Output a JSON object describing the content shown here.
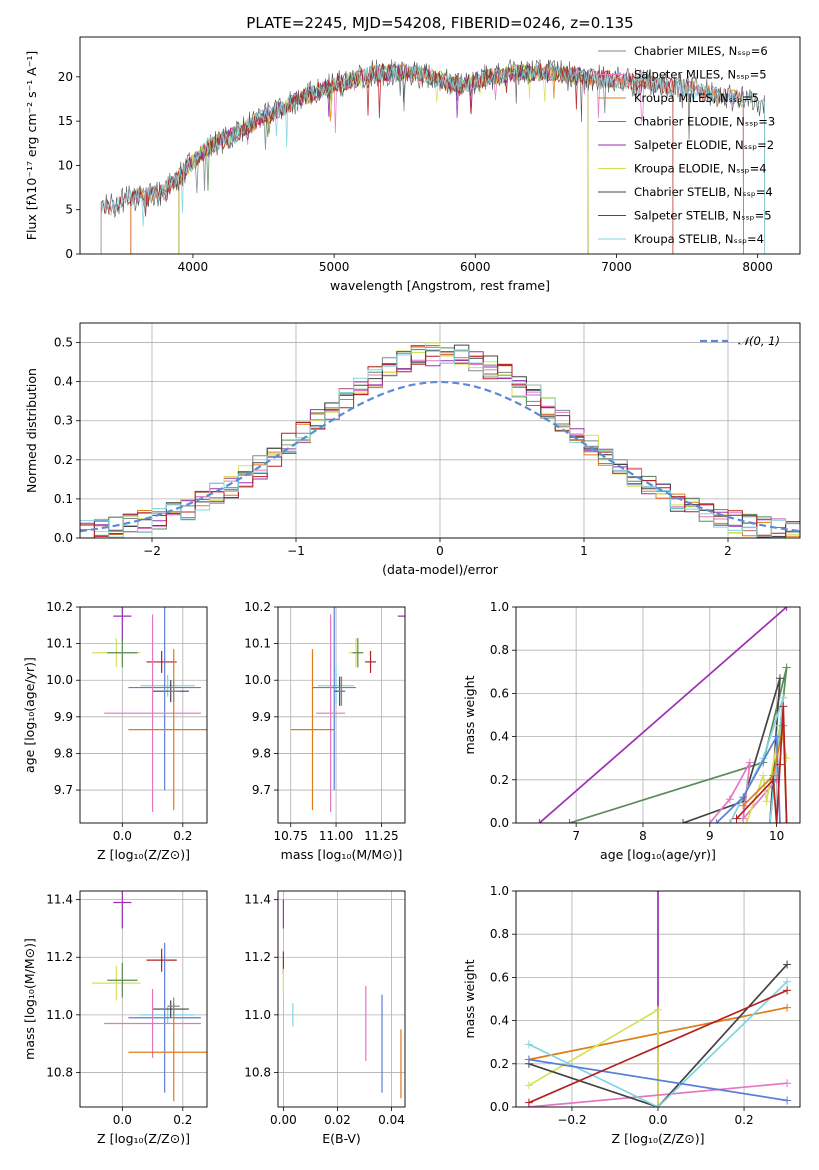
{
  "figure_title": "PLATE=2245, MJD=54208, FIBERID=0246, z=0.135",
  "model_colors": {
    "Chabrier MILES": "#7a8a8e",
    "Salpeter MILES": "#e377c2",
    "Kroupa MILES": "#e07b1a",
    "Chabrier ELODIE": "#5a8a5a",
    "Salpeter ELODIE": "#9b30b0",
    "Kroupa ELODIE": "#d4e157",
    "Chabrier STELIB": "#444444",
    "Salpeter STELIB": "#b22222",
    "Kroupa STELIB": "#80d4e0",
    "extra": "#5b7fd6"
  },
  "chart_data": [
    {
      "id": "spectrum",
      "type": "line",
      "xlabel": "wavelength [Angstrom, rest frame]",
      "ylabel": "Flux [fλ10⁻¹⁷ erg cm⁻² s⁻¹ A⁻¹]",
      "xlim": [
        3200,
        8300
      ],
      "ylim": [
        0,
        24.5
      ],
      "xticks": [
        "4000",
        "5000",
        "6000",
        "7000",
        "8000"
      ],
      "yticks": [
        "0",
        "5",
        "10",
        "15",
        "20"
      ],
      "grid": false,
      "legend_position": "right",
      "legend": [
        "Chabrier MILES, Nₛₛₚ=6",
        "Salpeter MILES, Nₛₛₚ=5",
        "Kroupa MILES, Nₛₛₚ=5",
        "Chabrier ELODIE, Nₛₛₚ=3",
        "Salpeter ELODIE, Nₛₛₚ=2",
        "Kroupa ELODIE, Nₛₛₚ=4",
        "Chabrier STELIB, Nₛₛₚ=4",
        "Salpeter STELIB, Nₛₛₚ=5",
        "Kroupa STELIB, Nₛₛₚ=4"
      ],
      "continuum_points": [
        [
          3350,
          5.0
        ],
        [
          3600,
          6.5
        ],
        [
          3800,
          7.0
        ],
        [
          3950,
          9.5
        ],
        [
          4100,
          12.0
        ],
        [
          4300,
          13.5
        ],
        [
          4500,
          15.5
        ],
        [
          4700,
          17.0
        ],
        [
          4900,
          18.5
        ],
        [
          5100,
          19.5
        ],
        [
          5300,
          20.5
        ],
        [
          5500,
          20.5
        ],
        [
          5700,
          20.0
        ],
        [
          5900,
          19.0
        ],
        [
          6100,
          20.0
        ],
        [
          6300,
          20.5
        ],
        [
          6500,
          20.5
        ],
        [
          6800,
          20.0
        ],
        [
          7100,
          19.5
        ],
        [
          7400,
          19.0
        ],
        [
          7700,
          18.0
        ],
        [
          7900,
          17.5
        ],
        [
          8050,
          17.0
        ]
      ],
      "series": [
        {
          "name": "Chabrier MILES",
          "x_range": [
            3560,
            7900
          ]
        },
        {
          "name": "Salpeter MILES",
          "x_range": [
            3560,
            7900
          ]
        },
        {
          "name": "Kroupa MILES",
          "x_range": [
            3560,
            7900
          ]
        },
        {
          "name": "Chabrier ELODIE",
          "x_range": [
            3900,
            6800
          ]
        },
        {
          "name": "Salpeter ELODIE",
          "x_range": [
            3900,
            6800
          ]
        },
        {
          "name": "Kroupa ELODIE",
          "x_range": [
            3900,
            6800
          ]
        },
        {
          "name": "Chabrier STELIB",
          "x_range": [
            3350,
            8050
          ]
        },
        {
          "name": "Salpeter STELIB",
          "x_range": [
            3350,
            7400
          ]
        },
        {
          "name": "Kroupa STELIB",
          "x_range": [
            3350,
            8050
          ]
        }
      ]
    },
    {
      "id": "residuals",
      "type": "line",
      "xlabel": "(data-model)/error",
      "ylabel": "Normed distribution",
      "xlim": [
        -2.5,
        2.5
      ],
      "ylim": [
        0,
        0.55
      ],
      "xticks": [
        "−2",
        "−1",
        "0",
        "1",
        "2"
      ],
      "yticks": [
        "0.0",
        "0.1",
        "0.2",
        "0.3",
        "0.4",
        "0.5"
      ],
      "grid": true,
      "legend_position": "top-right",
      "legend": [
        "𝒩(0, 1)"
      ],
      "bin_width": 0.1,
      "bins_from": -2.5,
      "gaussian": {
        "mean": 0,
        "sigma": 1,
        "label": "𝒩(0, 1)"
      }
    },
    {
      "id": "age_Z",
      "type": "scatter",
      "xlabel": "Z [log₁₀(Z/Z⊙)]",
      "ylabel": "age  [log₁₀(age/yr)]",
      "xlim": [
        -0.14,
        0.28
      ],
      "ylim": [
        9.61,
        10.2
      ],
      "xticks": [
        "0.0",
        "0.2"
      ],
      "yticks": [
        "9.7",
        "9.8",
        "9.9",
        "10.0",
        "10.1",
        "10.2"
      ],
      "grid": true,
      "points": [
        {
          "c": "Salpeter ELODIE",
          "x": 0.0,
          "xerr": 0.03,
          "y": 10.175,
          "yerr": 0.07
        },
        {
          "c": "Kroupa ELODIE",
          "x": -0.02,
          "xerr": 0.08,
          "y": 10.075,
          "yerr": 0.04
        },
        {
          "c": "Chabrier ELODIE",
          "x": 0.0,
          "xerr": 0.05,
          "y": 10.075,
          "yerr": 0.04
        },
        {
          "c": "Salpeter STELIB",
          "x": 0.13,
          "xerr": 0.05,
          "y": 10.05,
          "yerr": 0.03
        },
        {
          "c": "Kroupa STELIB",
          "x": 0.15,
          "xerr": 0.09,
          "y": 9.985,
          "yerr": 0.03
        },
        {
          "c": "Chabrier STELIB",
          "x": 0.16,
          "xerr": 0.06,
          "y": 9.97,
          "yerr": 0.03
        },
        {
          "c": "extra",
          "x": 0.14,
          "xerr": 0.12,
          "y": 9.98,
          "yerr": 0.28
        },
        {
          "c": "Salpeter MILES",
          "x": 0.1,
          "xerr": 0.16,
          "y": 9.91,
          "yerr": 0.27
        },
        {
          "c": "Kroupa MILES",
          "x": 0.17,
          "xerr": 0.15,
          "y": 9.865,
          "yerr": 0.22
        },
        {
          "c": "Chabrier MILES",
          "x": 0.17,
          "xerr": 0.02,
          "y": 9.97,
          "yerr": 0.03
        }
      ]
    },
    {
      "id": "age_mass",
      "type": "scatter",
      "xlabel": "mass [log₁₀(M/M⊙)]",
      "ylabel": "",
      "xlim": [
        10.68,
        11.38
      ],
      "ylim": [
        9.61,
        10.2
      ],
      "xticks": [
        "10.75",
        "11.00",
        "11.25"
      ],
      "yticks": [
        "9.7",
        "9.8",
        "9.9",
        "10.0",
        "10.1",
        "10.2"
      ],
      "grid": true,
      "points": [
        {
          "c": "Salpeter ELODIE",
          "x": 11.39,
          "xerr": 0.05,
          "y": 10.175,
          "yerr": 0.07
        },
        {
          "c": "Kroupa ELODIE",
          "x": 11.11,
          "xerr": 0.04,
          "y": 10.075,
          "yerr": 0.04
        },
        {
          "c": "Chabrier ELODIE",
          "x": 11.12,
          "xerr": 0.03,
          "y": 10.075,
          "yerr": 0.04
        },
        {
          "c": "Salpeter STELIB",
          "x": 11.19,
          "xerr": 0.03,
          "y": 10.05,
          "yerr": 0.03
        },
        {
          "c": "Kroupa STELIB",
          "x": 11.0,
          "xerr": 0.1,
          "y": 9.985,
          "yerr": 0.05
        },
        {
          "c": "Chabrier STELIB",
          "x": 11.02,
          "xerr": 0.03,
          "y": 9.97,
          "yerr": 0.04
        },
        {
          "c": "extra",
          "x": 10.99,
          "xerr": 0.12,
          "y": 9.98,
          "yerr": 0.28
        },
        {
          "c": "Salpeter MILES",
          "x": 10.97,
          "xerr": 0.08,
          "y": 9.91,
          "yerr": 0.27
        },
        {
          "c": "Kroupa MILES",
          "x": 10.87,
          "xerr": 0.12,
          "y": 9.865,
          "yerr": 0.22
        },
        {
          "c": "Chabrier MILES",
          "x": 11.03,
          "xerr": 0.02,
          "y": 9.97,
          "yerr": 0.04
        }
      ]
    },
    {
      "id": "weight_age",
      "type": "line",
      "xlabel": "age  [log₁₀(age/yr)]",
      "ylabel": "mass weight",
      "xlim": [
        6.1,
        10.35
      ],
      "ylim": [
        0,
        1.0
      ],
      "xticks": [
        "7",
        "8",
        "9",
        "10"
      ],
      "yticks": [
        "0.0",
        "0.2",
        "0.4",
        "0.6",
        "0.8",
        "1.0"
      ],
      "grid": true,
      "series": [
        {
          "c": "Salpeter ELODIE",
          "x": [
            6.45,
            10.15
          ],
          "y": [
            0.0,
            1.0
          ]
        },
        {
          "c": "Chabrier ELODIE",
          "x": [
            6.9,
            9.8,
            10.15,
            9.9
          ],
          "y": [
            0.0,
            0.28,
            0.72,
            0.0
          ]
        },
        {
          "c": "Chabrier STELIB",
          "x": [
            8.6,
            9.5,
            10.05,
            9.9
          ],
          "y": [
            0.0,
            0.1,
            0.67,
            0.0
          ]
        },
        {
          "c": "Salpeter MILES",
          "x": [
            9.0,
            9.3,
            9.6,
            9.5,
            10.0
          ],
          "y": [
            0.0,
            0.11,
            0.28,
            0.02,
            0.2
          ]
        },
        {
          "c": "Kroupa ELODIE",
          "x": [
            9.55,
            9.8,
            9.85,
            10.05,
            10.15
          ],
          "y": [
            0.0,
            0.22,
            0.1,
            0.45,
            0.3
          ]
        },
        {
          "c": "Kroupa STELIB",
          "x": [
            9.3,
            9.8,
            10.1,
            9.9
          ],
          "y": [
            0.0,
            0.3,
            0.58,
            0.0
          ]
        },
        {
          "c": "extra",
          "x": [
            9.1,
            9.5,
            10.0,
            10.05
          ],
          "y": [
            0.0,
            0.12,
            0.4,
            0.0
          ]
        },
        {
          "c": "Kroupa MILES",
          "x": [
            9.5,
            9.95,
            10.1,
            10.15
          ],
          "y": [
            0.08,
            0.22,
            0.45,
            0.0
          ]
        },
        {
          "c": "Salpeter STELIB",
          "x": [
            9.4,
            9.95,
            10.0,
            10.05,
            10.1,
            10.15
          ],
          "y": [
            0.02,
            0.2,
            0.0,
            0.27,
            0.54,
            0.0
          ]
        }
      ]
    },
    {
      "id": "mass_Z",
      "type": "scatter",
      "xlabel": "Z [log₁₀(Z/Z⊙)]",
      "ylabel": "mass [log₁₀(M/M⊙)]",
      "xlim": [
        -0.14,
        0.28
      ],
      "ylim": [
        10.68,
        11.43
      ],
      "xticks": [
        "0.0",
        "0.2"
      ],
      "yticks": [
        "10.8",
        "11.0",
        "11.2",
        "11.4"
      ],
      "grid": true,
      "points": [
        {
          "c": "Salpeter ELODIE",
          "x": 0.0,
          "xerr": 0.03,
          "y": 11.39,
          "yerr": 0.09
        },
        {
          "c": "Kroupa ELODIE",
          "x": -0.02,
          "xerr": 0.08,
          "y": 11.11,
          "yerr": 0.06
        },
        {
          "c": "Chabrier ELODIE",
          "x": 0.0,
          "xerr": 0.05,
          "y": 11.12,
          "yerr": 0.06
        },
        {
          "c": "Salpeter STELIB",
          "x": 0.13,
          "xerr": 0.05,
          "y": 11.19,
          "yerr": 0.04
        },
        {
          "c": "Kroupa STELIB",
          "x": 0.15,
          "xerr": 0.09,
          "y": 11.0,
          "yerr": 0.03
        },
        {
          "c": "Chabrier STELIB",
          "x": 0.16,
          "xerr": 0.06,
          "y": 11.02,
          "yerr": 0.03
        },
        {
          "c": "extra",
          "x": 0.14,
          "xerr": 0.12,
          "y": 10.99,
          "yerr": 0.26
        },
        {
          "c": "Salpeter MILES",
          "x": 0.1,
          "xerr": 0.16,
          "y": 10.97,
          "yerr": 0.12
        },
        {
          "c": "Kroupa MILES",
          "x": 0.17,
          "xerr": 0.15,
          "y": 10.87,
          "yerr": 0.17
        },
        {
          "c": "Chabrier MILES",
          "x": 0.17,
          "xerr": 0.02,
          "y": 11.03,
          "yerr": 0.03
        }
      ]
    },
    {
      "id": "mass_ebv",
      "type": "scatter",
      "xlabel": "E(B-V)",
      "ylabel": "",
      "xlim": [
        -0.002,
        0.045
      ],
      "ylim": [
        10.68,
        11.43
      ],
      "xticks": [
        "0.00",
        "0.02",
        "0.04"
      ],
      "yticks": [
        "10.8",
        "11.0",
        "11.2",
        "11.4"
      ],
      "grid": true,
      "points": [
        {
          "c": "Salpeter ELODIE",
          "x": 0.0,
          "xerr": 0.0,
          "y": 11.35,
          "yerr": 0.05
        },
        {
          "c": "Salpeter STELIB",
          "x": 0.0,
          "xerr": 0.0,
          "y": 11.18,
          "yerr": 0.04
        },
        {
          "c": "Kroupa ELODIE",
          "x": 0.0,
          "xerr": 0.0,
          "y": 11.11,
          "yerr": 0.05
        },
        {
          "c": "Kroupa STELIB",
          "x": 0.0035,
          "xerr": 0.0,
          "y": 11.0,
          "yerr": 0.04
        },
        {
          "c": "Salpeter MILES",
          "x": 0.0305,
          "xerr": 0.0,
          "y": 10.97,
          "yerr": 0.13
        },
        {
          "c": "extra",
          "x": 0.0365,
          "xerr": 0.0,
          "y": 10.9,
          "yerr": 0.17
        },
        {
          "c": "Kroupa MILES",
          "x": 0.0435,
          "xerr": 0.0,
          "y": 10.83,
          "yerr": 0.12
        }
      ]
    },
    {
      "id": "weight_Z",
      "type": "line",
      "xlabel": "Z [log₁₀(Z/Z⊙)]",
      "ylabel": "mass weight",
      "xlim": [
        -0.33,
        0.33
      ],
      "ylim": [
        0,
        1.0
      ],
      "xticks": [
        "−0.2",
        "0.0",
        "0.2"
      ],
      "yticks": [
        "0.0",
        "0.2",
        "0.4",
        "0.6",
        "0.8",
        "1.0"
      ],
      "grid": true,
      "series": [
        {
          "c": "Salpeter ELODIE",
          "x": [
            0.0,
            0.0
          ],
          "y": [
            0.0,
            1.0
          ]
        },
        {
          "c": "Kroupa MILES",
          "x": [
            -0.3,
            0.3
          ],
          "y": [
            0.22,
            0.46
          ]
        },
        {
          "c": "Kroupa ELODIE",
          "x": [
            -0.3,
            0.0,
            0.0
          ],
          "y": [
            0.1,
            0.45,
            0.0
          ]
        },
        {
          "c": "Salpeter MILES",
          "x": [
            -0.3,
            0.3
          ],
          "y": [
            0.0,
            0.11
          ]
        },
        {
          "c": "Chabrier STELIB",
          "x": [
            -0.3,
            0.0,
            0.3
          ],
          "y": [
            0.2,
            0.0,
            0.66
          ]
        },
        {
          "c": "Kroupa STELIB",
          "x": [
            -0.3,
            0.0,
            0.3
          ],
          "y": [
            0.29,
            0.0,
            0.58
          ]
        },
        {
          "c": "extra",
          "x": [
            -0.3,
            0.3
          ],
          "y": [
            0.22,
            0.03
          ]
        },
        {
          "c": "Salpeter STELIB",
          "x": [
            -0.3,
            0.3
          ],
          "y": [
            0.02,
            0.54
          ]
        }
      ]
    }
  ]
}
